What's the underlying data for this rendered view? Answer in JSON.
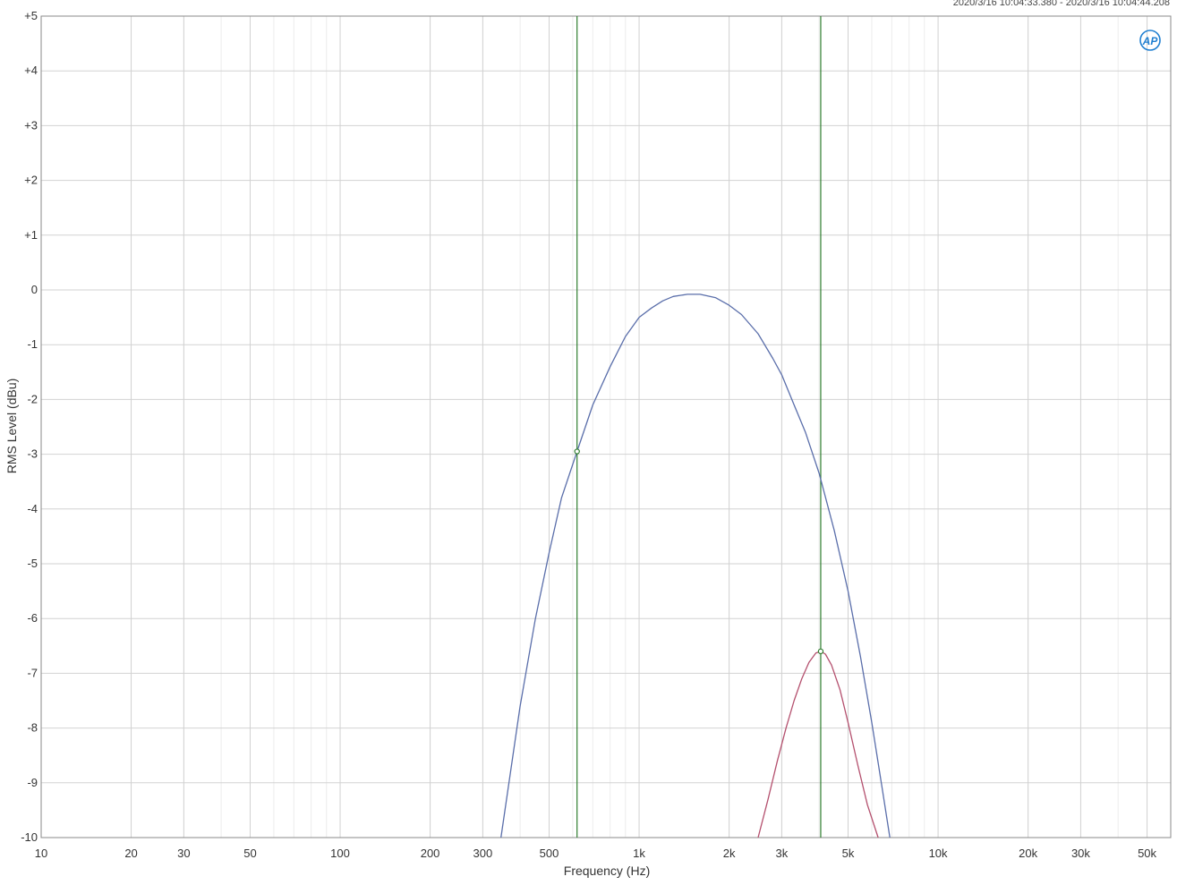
{
  "header": {
    "timestamp": "2020/3/16 10:04:33.380 - 2020/3/16 10:04:44.208",
    "logo_text": "AP"
  },
  "chart_data": {
    "type": "line",
    "xlabel": "Frequency (Hz)",
    "ylabel": "RMS Level (dBu)",
    "x_scale": "log",
    "xlim": [
      10,
      60000
    ],
    "ylim": [
      -10,
      5
    ],
    "grid": true,
    "x_ticks": [
      {
        "value": 10,
        "label": "10"
      },
      {
        "value": 20,
        "label": "20"
      },
      {
        "value": 30,
        "label": "30"
      },
      {
        "value": 50,
        "label": "50"
      },
      {
        "value": 100,
        "label": "100"
      },
      {
        "value": 200,
        "label": "200"
      },
      {
        "value": 300,
        "label": "300"
      },
      {
        "value": 500,
        "label": "500"
      },
      {
        "value": 1000,
        "label": "1k"
      },
      {
        "value": 2000,
        "label": "2k"
      },
      {
        "value": 3000,
        "label": "3k"
      },
      {
        "value": 5000,
        "label": "5k"
      },
      {
        "value": 10000,
        "label": "10k"
      },
      {
        "value": 20000,
        "label": "20k"
      },
      {
        "value": 30000,
        "label": "30k"
      },
      {
        "value": 50000,
        "label": "50k"
      }
    ],
    "y_ticks": [
      {
        "value": 5,
        "label": "+5"
      },
      {
        "value": 4,
        "label": "+4"
      },
      {
        "value": 3,
        "label": "+3"
      },
      {
        "value": 2,
        "label": "+2"
      },
      {
        "value": 1,
        "label": "+1"
      },
      {
        "value": 0,
        "label": "0"
      },
      {
        "value": -1,
        "label": "-1"
      },
      {
        "value": -2,
        "label": "-2"
      },
      {
        "value": -3,
        "label": "-3"
      },
      {
        "value": -4,
        "label": "-4"
      },
      {
        "value": -5,
        "label": "-5"
      },
      {
        "value": -6,
        "label": "-6"
      },
      {
        "value": -7,
        "label": "-7"
      },
      {
        "value": -8,
        "label": "-8"
      },
      {
        "value": -9,
        "label": "-9"
      },
      {
        "value": -10,
        "label": "-10"
      }
    ],
    "series": [
      {
        "color": "#5a6eaa",
        "points": [
          [
            345,
            -10
          ],
          [
            400,
            -7.6
          ],
          [
            450,
            -6.0
          ],
          [
            500,
            -4.8
          ],
          [
            550,
            -3.8
          ],
          [
            620,
            -2.95
          ],
          [
            700,
            -2.1
          ],
          [
            800,
            -1.4
          ],
          [
            900,
            -0.85
          ],
          [
            1000,
            -0.5
          ],
          [
            1100,
            -0.33
          ],
          [
            1200,
            -0.2
          ],
          [
            1300,
            -0.12
          ],
          [
            1450,
            -0.08
          ],
          [
            1600,
            -0.08
          ],
          [
            1800,
            -0.14
          ],
          [
            2000,
            -0.28
          ],
          [
            2200,
            -0.45
          ],
          [
            2500,
            -0.8
          ],
          [
            2800,
            -1.25
          ],
          [
            3000,
            -1.55
          ],
          [
            3300,
            -2.1
          ],
          [
            3600,
            -2.6
          ],
          [
            4000,
            -3.35
          ],
          [
            4500,
            -4.4
          ],
          [
            5000,
            -5.5
          ],
          [
            5500,
            -6.7
          ],
          [
            6000,
            -7.9
          ],
          [
            6500,
            -9.1
          ],
          [
            6900,
            -10
          ]
        ]
      },
      {
        "color": "#b4506e",
        "points": [
          [
            2500,
            -10
          ],
          [
            2700,
            -9.3
          ],
          [
            2900,
            -8.6
          ],
          [
            3100,
            -8.0
          ],
          [
            3300,
            -7.5
          ],
          [
            3500,
            -7.1
          ],
          [
            3700,
            -6.8
          ],
          [
            3900,
            -6.63
          ],
          [
            4050,
            -6.6
          ],
          [
            4200,
            -6.65
          ],
          [
            4400,
            -6.85
          ],
          [
            4700,
            -7.3
          ],
          [
            5000,
            -7.9
          ],
          [
            5400,
            -8.7
          ],
          [
            5800,
            -9.4
          ],
          [
            6300,
            -10
          ]
        ]
      }
    ],
    "cursors": [
      {
        "x": 620,
        "y": -2.95,
        "color": "#2e7d2e"
      },
      {
        "x": 4050,
        "y": -6.6,
        "color": "#2e7d2e"
      }
    ]
  }
}
